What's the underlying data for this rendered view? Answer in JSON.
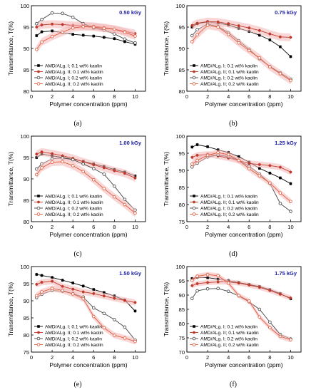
{
  "figure": {
    "colors": {
      "type1_a": "#000000",
      "type2_a": "#c0392b",
      "type1_b": "#444444",
      "type2_b": "#e05a3a",
      "band": "#f4b6b6",
      "dose_label": "#1a1aa6"
    },
    "markers": [
      "filled-square",
      "filled-circle",
      "open-circle",
      "open-circle"
    ]
  },
  "chart_data": [
    {
      "type": "line",
      "panel_label": "(a)",
      "dose_label": "0.50 kGy",
      "xlabel": "Polymer concentration (ppm)",
      "ylabel": "Transmittance, T(%)",
      "xlim": [
        0,
        11
      ],
      "ylim": [
        80,
        100
      ],
      "xticks": [
        "0",
        "2",
        "4",
        "6",
        "8",
        "10"
      ],
      "yticks": [
        "80",
        "85",
        "90",
        "95",
        "100"
      ],
      "legend_position": "lower-left",
      "series": [
        {
          "name": "AMD/ALg. I; 0.1 wt% kaolin",
          "x": [
            0.5,
            1,
            2,
            3,
            4,
            5,
            6,
            7,
            8,
            9,
            10
          ],
          "y": [
            93.0,
            93.9,
            94.1,
            93.7,
            93.3,
            93.1,
            92.9,
            92.6,
            92.3,
            91.6,
            91.0
          ]
        },
        {
          "name": "AMD/ALg. II; 0.1 wt% kaolin",
          "x": [
            0.5,
            1,
            2,
            3,
            4,
            5,
            6,
            7,
            8,
            9,
            10
          ],
          "y": [
            95.0,
            95.5,
            95.7,
            95.6,
            95.4,
            95.3,
            95.2,
            94.9,
            94.5,
            94.0,
            93.5
          ]
        },
        {
          "name": "AMD/ALg. I; 0.2 wt% kaolin",
          "x": [
            0.5,
            1,
            2,
            3,
            4,
            5,
            6,
            7,
            8,
            9,
            10
          ],
          "y": [
            95.8,
            96.8,
            98.3,
            98.2,
            97.3,
            95.8,
            94.8,
            94.3,
            93.4,
            92.2,
            91.3
          ]
        },
        {
          "name": "AMD/ALg. II; 0.2 wt% kaolin",
          "x": [
            0.5,
            1,
            2,
            3,
            4,
            5,
            6,
            7,
            8,
            9,
            10
          ],
          "y": [
            89.8,
            91.5,
            92.8,
            93.8,
            94.8,
            95.1,
            95.0,
            94.7,
            94.5,
            93.8,
            92.9
          ]
        }
      ]
    },
    {
      "type": "line",
      "panel_label": "(b)",
      "dose_label": "0.75 kGy",
      "xlabel": "Polymer concentration (ppm)",
      "ylabel": "Transmittance, T(%)",
      "xlim": [
        0,
        11
      ],
      "ylim": [
        80,
        100
      ],
      "xticks": [
        "0",
        "2",
        "4",
        "6",
        "8",
        "10"
      ],
      "yticks": [
        "80",
        "85",
        "90",
        "95",
        "100"
      ],
      "legend_position": "lower-left",
      "series": [
        {
          "name": "AMD/ALg. I; 0.1 wt% kaolin",
          "x": [
            0.5,
            1,
            2,
            3,
            4,
            5,
            6,
            7,
            8,
            9,
            10
          ],
          "y": [
            95.0,
            95.8,
            96.2,
            95.9,
            95.5,
            94.7,
            94.0,
            93.1,
            92.0,
            90.4,
            88.1
          ]
        },
        {
          "name": "AMD/ALg. II; 0.1 wt% kaolin",
          "x": [
            0.5,
            1,
            2,
            3,
            4,
            5,
            6,
            7,
            8,
            9,
            10
          ],
          "y": [
            95.4,
            95.9,
            96.3,
            96.2,
            95.8,
            95.3,
            94.8,
            94.2,
            93.4,
            92.7,
            92.6
          ]
        },
        {
          "name": "AMD/ALg. I; 0.2 wt% kaolin",
          "x": [
            0.5,
            1,
            2,
            3,
            4,
            5,
            6,
            7,
            8,
            9,
            10
          ],
          "y": [
            93.0,
            94.4,
            95.7,
            95.1,
            93.7,
            91.8,
            89.8,
            87.6,
            85.8,
            84.3,
            82.8
          ]
        },
        {
          "name": "AMD/ALg. II; 0.2 wt% kaolin",
          "x": [
            0.5,
            1,
            2,
            3,
            4,
            5,
            6,
            7,
            8,
            9,
            10
          ],
          "y": [
            91.6,
            93.2,
            95.4,
            95.0,
            93.3,
            91.3,
            89.5,
            87.8,
            85.7,
            84.1,
            82.5
          ]
        }
      ]
    },
    {
      "type": "line",
      "panel_label": "(c)",
      "dose_label": "1.00 kGy",
      "xlabel": "Polymer concentration (ppm)",
      "ylabel": "Transmittance, T(%)",
      "xlim": [
        0,
        11
      ],
      "ylim": [
        80,
        100
      ],
      "xticks": [
        "0",
        "2",
        "4",
        "6",
        "8",
        "10"
      ],
      "yticks": [
        "80",
        "85",
        "90",
        "95",
        "100"
      ],
      "legend_position": "lower-left",
      "series": [
        {
          "name": "AMD/ALg. I; 0.1 wt% kaolin",
          "x": [
            0.5,
            1,
            2,
            3,
            4,
            5,
            6,
            7,
            8,
            9,
            10
          ],
          "y": [
            95.0,
            95.8,
            95.4,
            95.0,
            94.6,
            94.1,
            93.5,
            92.9,
            92.2,
            91.6,
            90.7
          ]
        },
        {
          "name": "AMD/ALg. II; 0.1 wt% kaolin",
          "x": [
            0.5,
            1,
            2,
            3,
            4,
            5,
            6,
            7,
            8,
            9,
            10
          ],
          "y": [
            95.8,
            96.3,
            95.9,
            95.4,
            94.8,
            94.0,
            93.3,
            92.6,
            91.9,
            91.3,
            90.2
          ]
        },
        {
          "name": "AMD/ALg. I; 0.2 wt% kaolin",
          "x": [
            0.5,
            1,
            2,
            3,
            4,
            5,
            6,
            7,
            8,
            9,
            10
          ],
          "y": [
            92.3,
            93.5,
            94.7,
            94.9,
            94.5,
            93.5,
            92.4,
            91.1,
            88.3,
            85.2,
            82.7
          ]
        },
        {
          "name": "AMD/ALg. II; 0.2 wt% kaolin",
          "x": [
            0.5,
            1,
            2,
            3,
            4,
            5,
            6,
            7,
            8,
            9,
            10
          ],
          "y": [
            91.0,
            92.6,
            93.9,
            94.0,
            93.1,
            91.7,
            89.8,
            87.7,
            85.8,
            84.0,
            82.0
          ]
        }
      ]
    },
    {
      "type": "line",
      "panel_label": "(d)",
      "dose_label": "1.25 kGy",
      "xlabel": "Polymer concentration (ppm)",
      "ylabel": "Transmittance, T(%)",
      "xlim": [
        0,
        11
      ],
      "ylim": [
        75,
        100
      ],
      "xticks": [
        "0",
        "2",
        "4",
        "6",
        "8",
        "10"
      ],
      "yticks": [
        "75",
        "80",
        "85",
        "90",
        "95",
        "100"
      ],
      "legend_position": "lower-left",
      "series": [
        {
          "name": "AMD/ALg. I; 0.1 wt% kaolin",
          "x": [
            0.5,
            1,
            2,
            3,
            4,
            5,
            6,
            7,
            8,
            9,
            10
          ],
          "y": [
            96.8,
            97.5,
            96.9,
            96.0,
            95.2,
            94.0,
            92.4,
            90.6,
            89.2,
            87.8,
            86.1
          ]
        },
        {
          "name": "AMD/ALg. II; 0.1 wt% kaolin",
          "x": [
            0.5,
            1,
            2,
            3,
            4,
            5,
            6,
            7,
            8,
            9,
            10
          ],
          "y": [
            93.8,
            94.4,
            94.7,
            94.2,
            93.6,
            92.9,
            92.0,
            91.7,
            91.4,
            90.9,
            89.5
          ]
        },
        {
          "name": "AMD/ALg. I; 0.2 wt% kaolin",
          "x": [
            0.5,
            1,
            2,
            3,
            4,
            5,
            6,
            7,
            8,
            9,
            10
          ],
          "y": [
            91.0,
            92.1,
            93.9,
            94.5,
            94.0,
            92.9,
            91.2,
            88.9,
            86.2,
            80.3,
            78.0
          ]
        },
        {
          "name": "AMD/ALg. II; 0.2 wt% kaolin",
          "x": [
            0.5,
            1,
            2,
            3,
            4,
            5,
            6,
            7,
            8,
            9,
            10
          ],
          "y": [
            91.8,
            92.9,
            94.4,
            95.2,
            94.6,
            92.9,
            90.5,
            88.4,
            86.3,
            83.4,
            80.9
          ]
        }
      ]
    },
    {
      "type": "line",
      "panel_label": "(e)",
      "dose_label": "1.50 kGy",
      "xlabel": "Polymer concentration (ppm)",
      "ylabel": "Transmittance, T(%)",
      "xlim": [
        0,
        11
      ],
      "ylim": [
        75,
        100
      ],
      "xticks": [
        "0",
        "2",
        "4",
        "6",
        "8",
        "10"
      ],
      "yticks": [
        "75",
        "80",
        "85",
        "90",
        "95",
        "100"
      ],
      "legend_position": "lower-left",
      "series": [
        {
          "name": "AMD/ALg. I; 0.1 wt% kaolin",
          "x": [
            0.5,
            1,
            2,
            3,
            4,
            5,
            6,
            7,
            8,
            9,
            10
          ],
          "y": [
            97.7,
            97.4,
            96.8,
            96.0,
            95.2,
            94.3,
            93.3,
            92.4,
            91.4,
            90.2,
            87.0
          ]
        },
        {
          "name": "AMD/ALg. II; 0.1 wt% kaolin",
          "x": [
            0.5,
            1,
            2,
            3,
            4,
            5,
            6,
            7,
            8,
            9,
            10
          ],
          "y": [
            94.8,
            95.4,
            95.7,
            94.2,
            93.4,
            92.6,
            92.1,
            91.4,
            90.7,
            90.1,
            89.5
          ]
        },
        {
          "name": "AMD/ALg. I; 0.2 wt% kaolin",
          "x": [
            0.5,
            1,
            2,
            3,
            4,
            5,
            6,
            7,
            8,
            9,
            10
          ],
          "y": [
            90.9,
            91.9,
            93.0,
            92.8,
            92.1,
            91.1,
            87.9,
            86.3,
            84.5,
            82.3,
            78.5
          ]
        },
        {
          "name": "AMD/ALg. II; 0.2 wt% kaolin",
          "x": [
            0.5,
            1,
            2,
            3,
            4,
            5,
            6,
            7,
            8,
            9,
            10
          ],
          "y": [
            91.5,
            92.6,
            93.6,
            93.0,
            92.0,
            90.6,
            85.4,
            82.1,
            79.9,
            79.1,
            78.1
          ]
        }
      ]
    },
    {
      "type": "line",
      "panel_label": "(f)",
      "dose_label": "1.75 kGy",
      "xlabel": "Polymer concentration (ppm)",
      "ylabel": "Transmittance, T(%)",
      "xlim": [
        0,
        11
      ],
      "ylim": [
        70,
        100
      ],
      "xticks": [
        "0",
        "2",
        "4",
        "6",
        "8",
        "10"
      ],
      "yticks": [
        "70",
        "75",
        "80",
        "85",
        "90",
        "95",
        "100"
      ],
      "legend_position": "lower-left",
      "series": [
        {
          "name": "AMD/ALg. I; 0.1 wt% kaolin",
          "x": [
            0.5,
            1,
            2,
            3,
            4,
            5,
            6,
            7,
            8,
            9,
            10
          ],
          "y": [
            95.8,
            96.2,
            96.1,
            95.6,
            95.1,
            94.4,
            93.7,
            93.0,
            91.9,
            90.5,
            88.7
          ]
        },
        {
          "name": "AMD/ALg. II; 0.1 wt% kaolin",
          "x": [
            0.5,
            1,
            2,
            3,
            4,
            5,
            6,
            7,
            8,
            9,
            10
          ],
          "y": [
            93.3,
            94.0,
            94.4,
            94.6,
            94.6,
            94.2,
            93.5,
            92.7,
            91.6,
            90.3,
            89.0
          ]
        },
        {
          "name": "AMD/ALg. I; 0.2 wt% kaolin",
          "x": [
            0.5,
            1,
            2,
            3,
            4,
            5,
            6,
            7,
            8,
            9,
            10
          ],
          "y": [
            88.8,
            91.5,
            92.2,
            92.3,
            91.3,
            89.7,
            87.6,
            85.0,
            80.5,
            76.2,
            74.6
          ]
        },
        {
          "name": "AMD/ALg. II; 0.2 wt% kaolin",
          "x": [
            0.5,
            1,
            2,
            3,
            4,
            5,
            6,
            7,
            8,
            9,
            10
          ],
          "y": [
            95.1,
            96.6,
            97.2,
            96.8,
            94.2,
            89.8,
            87.9,
            82.3,
            78.6,
            75.5,
            74.3
          ]
        }
      ]
    }
  ]
}
